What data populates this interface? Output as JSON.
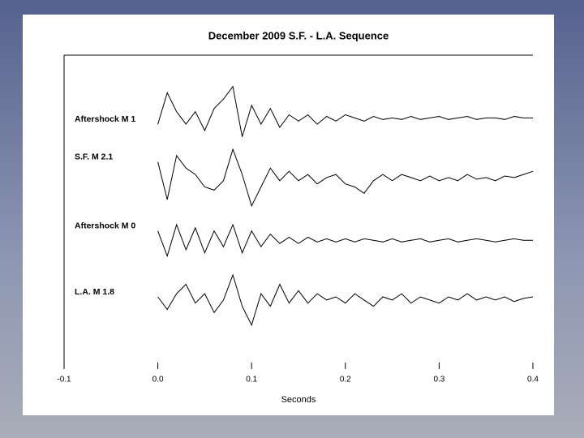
{
  "chart_data": {
    "type": "line",
    "title": "December 2009 S.F. - L.A. Sequence",
    "xlabel": "Seconds",
    "xlim": [
      -0.1,
      0.4
    ],
    "xticks": [
      -0.1,
      {
        "value": 0,
        "label": "0.0"
      },
      0.1,
      0.2,
      0.3,
      0.4
    ],
    "ylim": [
      0,
      100
    ],
    "x": [
      0,
      0.01,
      0.02,
      0.03,
      0.04,
      0.05,
      0.06,
      0.07,
      0.08,
      0.09,
      0.1,
      0.11,
      0.12,
      0.13,
      0.14,
      0.15,
      0.16,
      0.17,
      0.18,
      0.19,
      0.2,
      0.21,
      0.22,
      0.23,
      0.24,
      0.25,
      0.26,
      0.27,
      0.28,
      0.29,
      0.3,
      0.31,
      0.32,
      0.33,
      0.34,
      0.35,
      0.36,
      0.37,
      0.38,
      0.39,
      0.4
    ],
    "series": [
      {
        "name": "Aftershock M 1",
        "color": "#000000",
        "values": [
          78,
          88,
          82,
          78,
          82,
          76,
          83,
          86,
          90,
          74,
          84,
          78,
          83,
          77,
          81,
          79,
          81,
          78,
          80.5,
          79,
          81,
          80,
          79,
          80.5,
          79.5,
          80,
          79.5,
          80.5,
          79.5,
          80,
          80.5,
          79.5,
          80,
          80.5,
          79.5,
          80,
          80,
          79.5,
          80.5,
          80,
          80
        ]
      },
      {
        "name": "S.F. M 2.1",
        "color": "#000000",
        "values": [
          66,
          54,
          68,
          64,
          62,
          58,
          57,
          60,
          70,
          62,
          52,
          58,
          64,
          60,
          63,
          60,
          62,
          59,
          61,
          62,
          59,
          58,
          56,
          60,
          62,
          60,
          62,
          61,
          60,
          61.5,
          60,
          61,
          60,
          62,
          60.5,
          61,
          60,
          61.5,
          61,
          62,
          63
        ]
      },
      {
        "name": "Aftershock M 0",
        "color": "#000000",
        "values": [
          44,
          36,
          46,
          38,
          45,
          37,
          44,
          39,
          46,
          37,
          44,
          39,
          43,
          40,
          42,
          40,
          42,
          40.5,
          41.5,
          40.5,
          41.5,
          40.5,
          41.5,
          41,
          40.5,
          41.5,
          40.5,
          41,
          41.5,
          40.5,
          41,
          41.5,
          40.5,
          41,
          41.5,
          41,
          40.5,
          41,
          41.5,
          41,
          41
        ]
      },
      {
        "name": "L.A. M 1.8",
        "color": "#000000",
        "values": [
          23,
          19,
          24,
          27,
          21,
          24,
          18,
          22,
          30,
          20,
          14,
          24,
          20,
          27,
          21,
          25,
          21,
          24,
          22,
          23,
          21,
          24,
          22,
          20,
          23,
          22,
          24,
          21,
          23,
          22,
          21,
          23,
          22,
          24,
          22,
          23,
          22,
          23,
          21.5,
          22.5,
          23
        ]
      }
    ]
  }
}
